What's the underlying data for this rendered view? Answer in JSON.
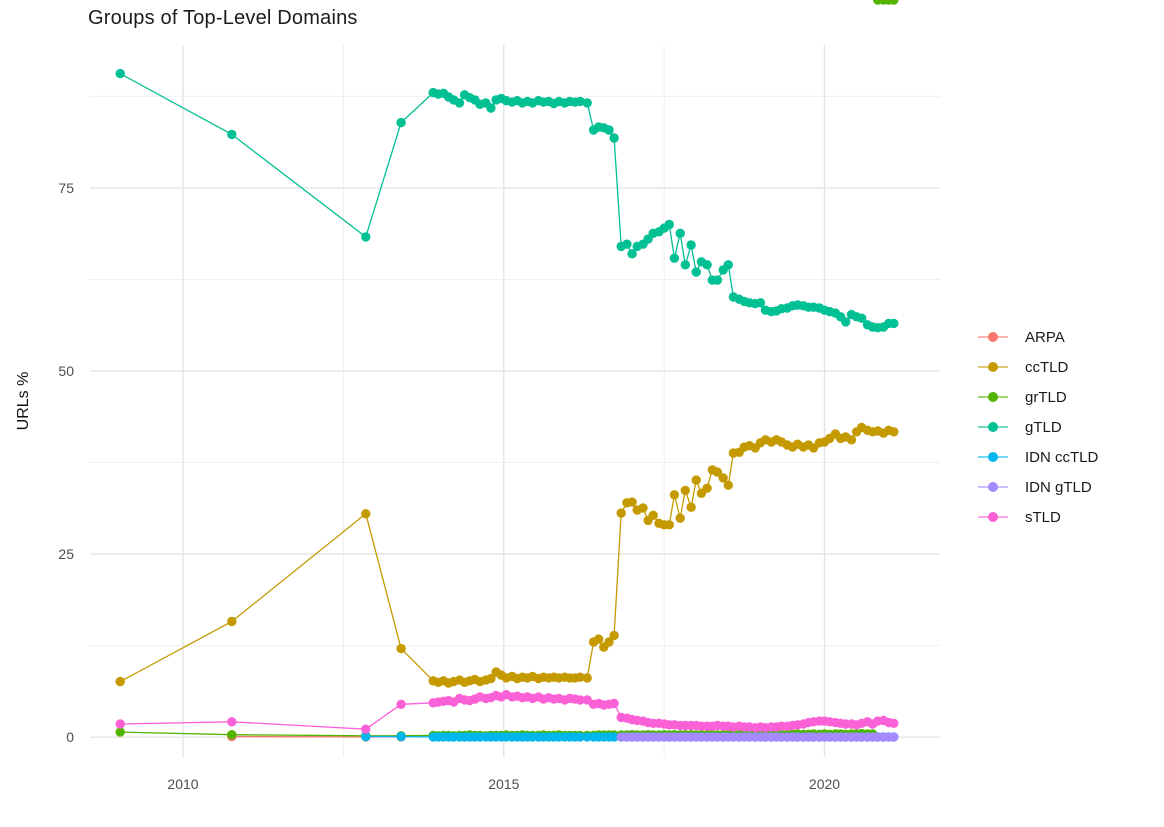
{
  "chart_data": {
    "type": "line",
    "title": "Groups of Top-Level Domains",
    "xlabel": "",
    "ylabel": "URLs %",
    "grid": true,
    "legend_position": "right",
    "xlim": [
      2008.55,
      2021.8
    ],
    "ylim": [
      -2.7,
      94.5
    ],
    "x_ticks": [
      2010,
      2015,
      2020
    ],
    "x_minor_ticks": [
      2012.5,
      2017.5
    ],
    "y_ticks": [
      0,
      25,
      50,
      75
    ],
    "y_minor_ticks": [
      12.5,
      37.5,
      62.5,
      87.5
    ],
    "x_dense": [
      2013.9,
      2013.98,
      2014.06,
      2014.14,
      2014.22,
      2014.31,
      2014.39,
      2014.47,
      2014.55,
      2014.63,
      2014.72,
      2014.8,
      2014.88,
      2014.96,
      2015.04,
      2015.13,
      2015.21,
      2015.29,
      2015.37,
      2015.45,
      2015.54,
      2015.62,
      2015.7,
      2015.78,
      2015.86,
      2015.95,
      2016.03,
      2016.11,
      2016.19,
      2016.3,
      2016.4,
      2016.48,
      2016.56,
      2016.64,
      2016.72,
      2016.83,
      2016.92,
      2017.0,
      2017.08,
      2017.17,
      2017.25,
      2017.33,
      2017.42,
      2017.5,
      2017.58,
      2017.66,
      2017.75,
      2017.83,
      2017.92,
      2018.0,
      2018.08,
      2018.17,
      2018.25,
      2018.33,
      2018.42,
      2018.5,
      2018.58,
      2018.67,
      2018.75,
      2018.83,
      2018.92,
      2019.0,
      2019.08,
      2019.17,
      2019.25,
      2019.33,
      2019.42,
      2019.5,
      2019.58,
      2019.67,
      2019.75,
      2019.83,
      2019.92,
      2020.0,
      2020.08,
      2020.17,
      2020.25,
      2020.33,
      2020.42,
      2020.5,
      2020.58,
      2020.67,
      2020.75,
      2020.83,
      2020.92,
      2021.0,
      2021.08
    ],
    "series": [
      {
        "name": "ARPA",
        "color": "#F8766D",
        "x": [
          2010.76,
          2012.85,
          2013.4
        ],
        "y": [
          0.1,
          0.05,
          0.05
        ]
      },
      {
        "name": "ccTLD",
        "color": "#C49A00",
        "x_start": [
          2009.02,
          2010.76,
          2012.85,
          2013.4
        ],
        "uses_dense_x": true,
        "y": [
          7.6,
          15.8,
          30.5,
          12.1,
          7.7,
          7.5,
          7.7,
          7.4,
          7.6,
          7.8,
          7.5,
          7.7,
          7.9,
          7.6,
          7.8,
          8.0,
          8.9,
          8.5,
          8.1,
          8.3,
          8.0,
          8.2,
          8.1,
          8.3,
          8.0,
          8.2,
          8.1,
          8.2,
          8.1,
          8.2,
          8.1,
          8.1,
          8.2,
          8.1,
          13.0,
          13.4,
          12.3,
          13.0,
          13.9,
          30.6,
          32.0,
          32.1,
          31.0,
          31.3,
          29.6,
          30.3,
          29.2,
          29.0,
          29.0,
          33.1,
          29.9,
          33.7,
          31.4,
          35.1,
          33.3,
          34.0,
          36.5,
          36.2,
          35.4,
          34.4,
          38.8,
          38.9,
          39.6,
          39.8,
          39.5,
          40.2,
          40.6,
          40.3,
          40.6,
          40.3,
          39.9,
          39.6,
          40.0,
          39.6,
          39.9,
          39.5,
          40.2,
          40.3,
          40.8,
          41.4,
          40.8,
          41.0,
          40.6,
          41.7,
          42.3,
          41.9,
          41.7,
          41.8,
          41.5,
          41.9,
          41.7
        ]
      },
      {
        "name": "grTLD",
        "color": "#53B400",
        "x_start": [
          2009.02,
          2010.76,
          2012.85,
          2013.4
        ],
        "uses_dense_x": true,
        "y": [
          0.7,
          0.35,
          0.2,
          0.2,
          0.25,
          0.2,
          0.25,
          0.25,
          0.2,
          0.25,
          0.25,
          0.3,
          0.25,
          0.25,
          0.2,
          0.25,
          0.25,
          0.25,
          0.3,
          0.25,
          0.25,
          0.3,
          0.25,
          0.25,
          0.25,
          0.3,
          0.25,
          0.25,
          0.3,
          0.25,
          0.25,
          0.25,
          0.25,
          0.25,
          0.25,
          0.3,
          0.3,
          0.3,
          0.3,
          0.3,
          0.3,
          0.35,
          0.3,
          0.3,
          0.35,
          0.3,
          0.3,
          0.35,
          0.3,
          0.35,
          0.3,
          0.35,
          0.35,
          0.3,
          0.35,
          0.35,
          0.35,
          0.3,
          0.35,
          0.35,
          0.4,
          0.35,
          0.35,
          0.4,
          0.35,
          0.4,
          0.35,
          0.4,
          0.4,
          0.35,
          0.4,
          0.4,
          0.45,
          0.4,
          0.4,
          0.45,
          0.4,
          0.45,
          0.4,
          0.45,
          0.45,
          0.4,
          0.45,
          0.45,
          0.5,
          0.45,
          0.45
        ]
      },
      {
        "name": "gTLD",
        "color": "#00C094",
        "x_start": [
          2009.02,
          2010.76,
          2012.85,
          2013.4
        ],
        "uses_dense_x": true,
        "y": [
          90.6,
          82.3,
          68.3,
          83.9,
          88.0,
          87.8,
          87.9,
          87.4,
          87.0,
          86.6,
          87.7,
          87.3,
          87.0,
          86.4,
          86.6,
          85.9,
          87.0,
          87.2,
          86.9,
          86.7,
          86.9,
          86.6,
          86.8,
          86.6,
          86.9,
          86.7,
          86.8,
          86.5,
          86.8,
          86.6,
          86.8,
          86.7,
          86.8,
          86.6,
          82.9,
          83.3,
          83.2,
          82.9,
          81.8,
          67.0,
          67.3,
          66.0,
          67.0,
          67.3,
          68.0,
          68.8,
          69.0,
          69.5,
          70.0,
          65.4,
          68.8,
          64.5,
          67.2,
          63.5,
          64.9,
          64.5,
          62.4,
          62.4,
          63.8,
          64.5,
          60.1,
          59.8,
          59.5,
          59.3,
          59.2,
          59.3,
          58.3,
          58.1,
          58.2,
          58.5,
          58.6,
          58.9,
          59.0,
          58.9,
          58.7,
          58.7,
          58.6,
          58.3,
          58.1,
          57.9,
          57.4,
          56.7,
          57.7,
          57.4,
          57.2,
          56.3,
          56.0,
          55.9,
          56.0,
          56.5,
          56.5
        ]
      },
      {
        "name": "IDN ccTLD",
        "color": "#00B6EB",
        "x_start": [
          2012.85,
          2013.4
        ],
        "uses_dense_x": true,
        "y_head": [
          0.1,
          0.08
        ],
        "y_fill": 0.05
      },
      {
        "name": "IDN gTLD",
        "color": "#A58AFF",
        "x": [
          2016.83,
          2016.92,
          2017.0,
          2017.08,
          2017.17,
          2017.25,
          2017.33,
          2017.42,
          2017.5,
          2017.58,
          2017.66,
          2017.75,
          2017.83,
          2017.92,
          2018.0,
          2018.08,
          2018.17,
          2018.25,
          2018.33,
          2018.42,
          2018.5,
          2018.58,
          2018.67,
          2018.75,
          2018.83,
          2018.92,
          2019.0,
          2019.08,
          2019.17,
          2019.25,
          2019.33,
          2019.42,
          2019.5,
          2019.58,
          2019.67,
          2019.75,
          2019.83,
          2019.92,
          2020.0,
          2020.08,
          2020.17,
          2020.25,
          2020.33,
          2020.42,
          2020.5,
          2020.58,
          2020.67,
          2020.75,
          2020.83,
          2020.92,
          2021.0,
          2021.08
        ],
        "y_fill": 0.02
      },
      {
        "name": "sTLD",
        "color": "#FB61D7",
        "x_start": [
          2009.02,
          2010.76,
          2012.85,
          2013.4
        ],
        "uses_dense_x": true,
        "y": [
          1.8,
          2.1,
          1.1,
          4.5,
          4.7,
          4.8,
          4.9,
          5.0,
          4.8,
          5.3,
          5.1,
          5.0,
          5.2,
          5.5,
          5.3,
          5.4,
          5.7,
          5.5,
          5.8,
          5.5,
          5.6,
          5.4,
          5.5,
          5.3,
          5.5,
          5.2,
          5.4,
          5.2,
          5.3,
          5.1,
          5.3,
          5.2,
          5.1,
          5.1,
          4.5,
          4.6,
          4.4,
          4.5,
          4.6,
          2.7,
          2.6,
          2.4,
          2.3,
          2.2,
          2.0,
          1.9,
          1.9,
          1.8,
          1.7,
          1.7,
          1.6,
          1.6,
          1.6,
          1.6,
          1.5,
          1.5,
          1.5,
          1.6,
          1.5,
          1.5,
          1.4,
          1.5,
          1.4,
          1.4,
          1.3,
          1.4,
          1.3,
          1.4,
          1.4,
          1.5,
          1.5,
          1.6,
          1.7,
          1.8,
          2.0,
          2.1,
          2.2,
          2.2,
          2.1,
          2.0,
          1.9,
          1.8,
          1.8,
          1.7,
          1.9,
          2.1,
          1.8,
          2.2,
          2.3,
          2.0,
          1.9
        ]
      }
    ],
    "style": {
      "grid_major_color": "#E4E4E4",
      "grid_minor_color": "#EEEEEE",
      "tick_label_color": "#4d4d4d",
      "background": "#ffffff"
    }
  }
}
